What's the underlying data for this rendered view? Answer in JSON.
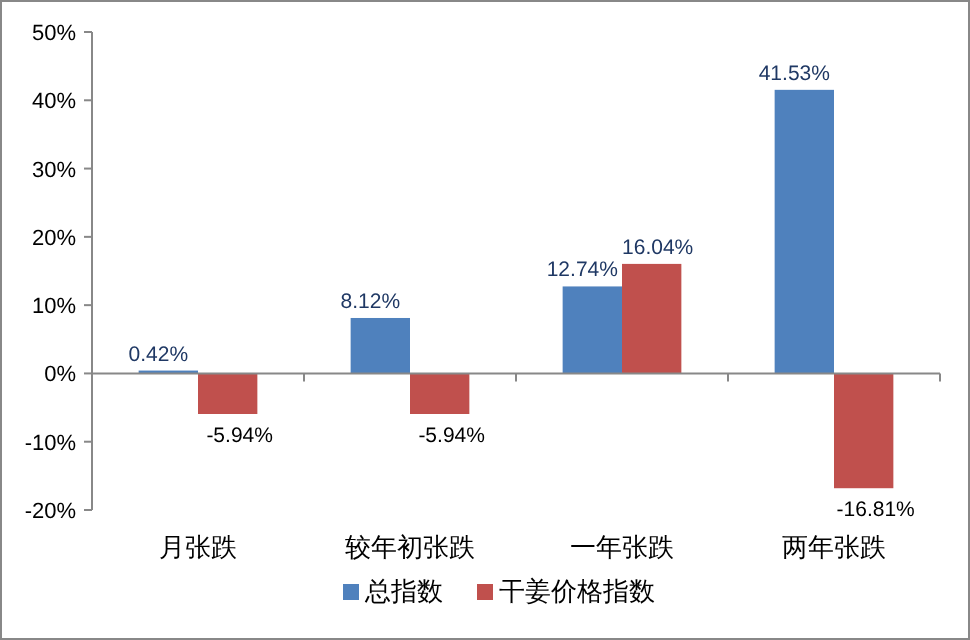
{
  "chart_data": {
    "type": "bar",
    "categories": [
      "月张跌",
      "较年初张跌",
      "一年张跌",
      "两年张跌"
    ],
    "series": [
      {
        "name": "总指数",
        "color": "#4f81bd",
        "values": [
          0.42,
          8.12,
          12.74,
          41.53
        ],
        "value_labels": [
          "0.42%",
          "8.12%",
          "12.74%",
          "41.53%"
        ]
      },
      {
        "name": "干姜价格指数",
        "color": "#c0504d",
        "values": [
          -5.94,
          -5.94,
          16.04,
          -16.81
        ],
        "value_labels": [
          "-5.94%",
          "-5.94%",
          "16.04%",
          "-16.81%"
        ]
      }
    ],
    "ylim": [
      -20,
      50
    ],
    "yticks": [
      {
        "value": -20,
        "label": "-20%"
      },
      {
        "value": -10,
        "label": "-10%"
      },
      {
        "value": 0,
        "label": "0%"
      },
      {
        "value": 10,
        "label": "10%"
      },
      {
        "value": 20,
        "label": "20%"
      },
      {
        "value": 30,
        "label": "30%"
      },
      {
        "value": 40,
        "label": "40%"
      },
      {
        "value": 50,
        "label": "50%"
      }
    ],
    "legend": "bottom"
  }
}
